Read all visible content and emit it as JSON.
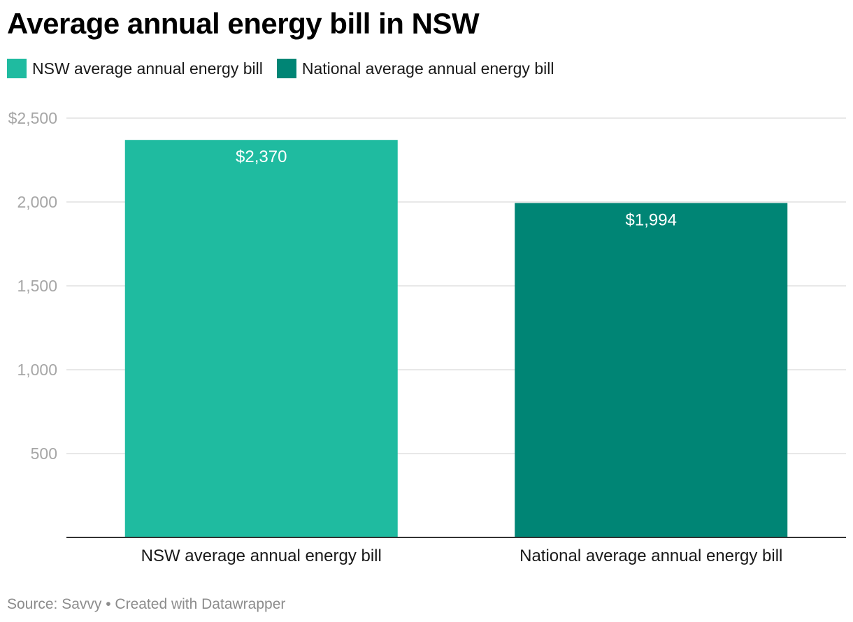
{
  "title": "Average annual energy bill in NSW",
  "legend": [
    {
      "label": "NSW average annual energy bill",
      "color": "#1fbba0"
    },
    {
      "label": "National average annual energy bill",
      "color": "#008575"
    }
  ],
  "source": "Source: Savvy • Created with Datawrapper",
  "chart_data": {
    "type": "bar",
    "title": "Average annual energy bill in NSW",
    "categories": [
      "NSW average annual energy bill",
      "National average annual energy bill"
    ],
    "values": [
      2370,
      1994
    ],
    "data_labels": [
      "$2,370",
      "$1,994"
    ],
    "colors": [
      "#1fbba0",
      "#008575"
    ],
    "y_ticks": [
      500,
      1000,
      1500,
      2000,
      2500
    ],
    "y_tick_labels": [
      "500",
      "1,000",
      "1,500",
      "2,000",
      "$2,500"
    ],
    "ylim": [
      0,
      2500
    ],
    "xlabel": "",
    "ylabel": "",
    "grid": true,
    "legend_position": "top-left"
  }
}
